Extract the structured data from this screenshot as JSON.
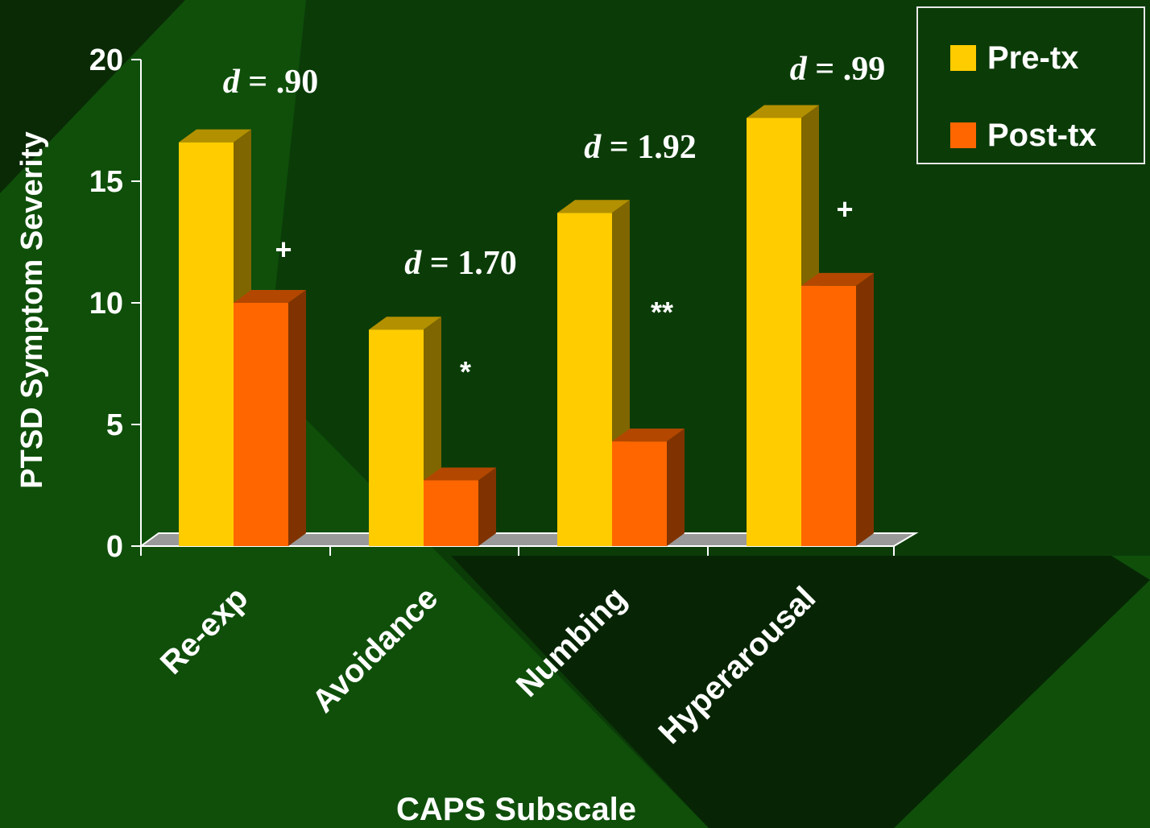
{
  "chart_data": {
    "type": "bar",
    "xlabel": "CAPS Subscale",
    "ylabel": "PTSD Symptom Severity",
    "ylim": [
      0,
      20
    ],
    "yticks": [
      0,
      5,
      10,
      15,
      20
    ],
    "categories": [
      "Re-exp",
      "Avoidance",
      "Numbing",
      "Hyperarousal"
    ],
    "series": [
      {
        "name": "Pre-tx",
        "values": [
          16.6,
          8.9,
          13.7,
          17.6
        ]
      },
      {
        "name": "Post-tx",
        "values": [
          10.0,
          2.7,
          4.3,
          10.7
        ]
      }
    ],
    "effect_sizes": [
      {
        "prefix": "d",
        "text": " = .90"
      },
      {
        "prefix": "d",
        "text": " = 1.70"
      },
      {
        "prefix": "d",
        "text": " = 1.92"
      },
      {
        "prefix": "d",
        "text": " = .99"
      }
    ],
    "significance": [
      "+",
      "*",
      "**",
      "+"
    ],
    "legend_position": "top-right",
    "grid": false
  },
  "colors": {
    "pre_front": "#ffcc00",
    "pre_side": "#806600",
    "pre_top": "#b39000",
    "post_front": "#ff6600",
    "post_side": "#803300",
    "post_top": "#b34700",
    "floor": "#999999",
    "axis": "#ffffff"
  }
}
